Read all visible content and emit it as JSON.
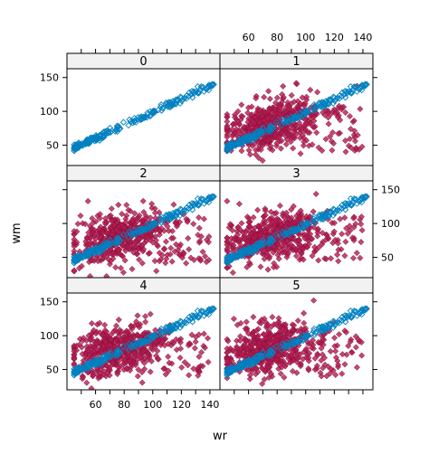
{
  "chart_data": {
    "type": "scatter",
    "xlabel": "wr",
    "ylabel": "wm",
    "xlim": [
      40,
      147
    ],
    "ylim": [
      20,
      163
    ],
    "x_ticks": [
      60,
      80,
      100,
      120,
      140
    ],
    "y_ticks": [
      50,
      100,
      150
    ],
    "colors": {
      "imputed": "#b5194f",
      "observed": "#0080c0",
      "strip": "#f2f2f2"
    },
    "marker_style": {
      "observed": "open-diamond",
      "imputed": "filled-diamond"
    },
    "observed_relation": {
      "slope": 0.97,
      "intercept": 2,
      "x_range": [
        45,
        143
      ],
      "noise_sd": 2.5,
      "n": 220
    },
    "imputed_cloud": {
      "center_x": 75,
      "center_y": 80,
      "x_range": [
        45,
        140
      ],
      "y_range": [
        22,
        152
      ],
      "n": 520
    },
    "panels": [
      {
        "label": "0",
        "show_imputed": false
      },
      {
        "label": "1",
        "show_imputed": true
      },
      {
        "label": "2",
        "show_imputed": true
      },
      {
        "label": "3",
        "show_imputed": true
      },
      {
        "label": "4",
        "show_imputed": true
      },
      {
        "label": "5",
        "show_imputed": true
      }
    ]
  }
}
